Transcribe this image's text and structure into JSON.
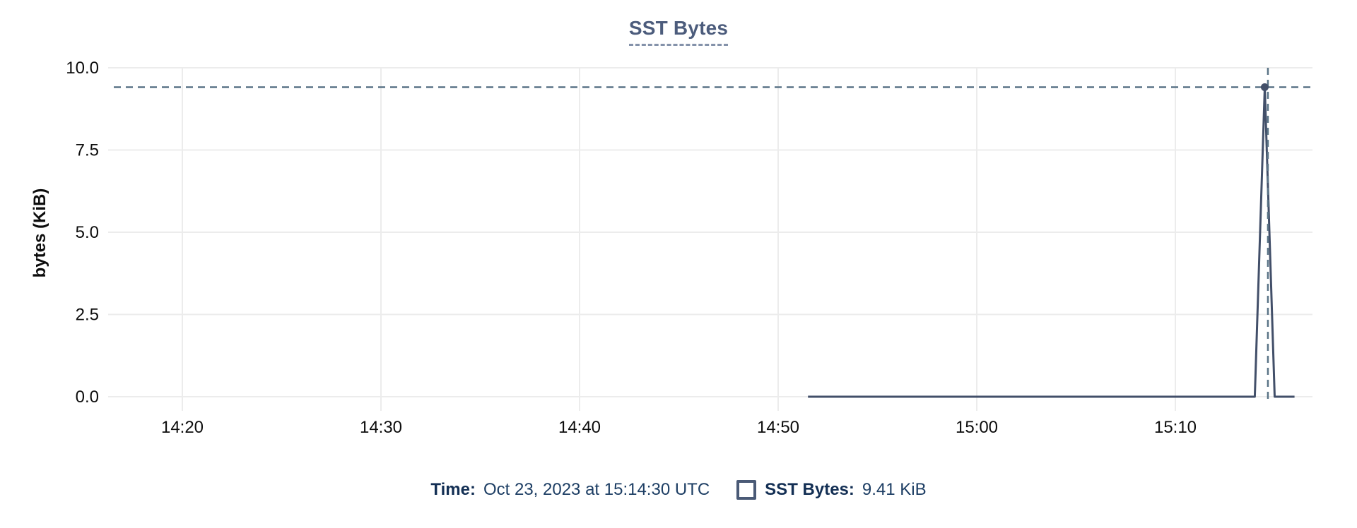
{
  "chart": {
    "title": "SST Bytes",
    "y_axis_title": "bytes (KiB)"
  },
  "chart_data": {
    "type": "line",
    "title": "SST Bytes",
    "xlabel": "",
    "ylabel": "bytes (KiB)",
    "ylim": [
      0,
      10
    ],
    "grid": true,
    "y_ticks": [
      {
        "label": "10.0",
        "v": 10
      },
      {
        "label": "7.5",
        "v": 7.5
      },
      {
        "label": "5.0",
        "v": 5
      },
      {
        "label": "2.5",
        "v": 2.5
      },
      {
        "label": "0.0",
        "v": 0
      }
    ],
    "x_ticks": [
      {
        "label": "14:20",
        "t": 860
      },
      {
        "label": "14:30",
        "t": 870
      },
      {
        "label": "14:40",
        "t": 880
      },
      {
        "label": "14:50",
        "t": 890
      },
      {
        "label": "15:00",
        "t": 900
      },
      {
        "label": "15:10",
        "t": 910
      }
    ],
    "x_unit": "time of day (minutes since midnight)",
    "xlim_minutes": [
      856.3,
      916.9
    ],
    "series": [
      {
        "name": "SST Bytes",
        "units": "KiB",
        "points": [
          [
            891.5,
            0
          ],
          [
            900,
            0
          ],
          [
            910,
            0
          ],
          [
            914,
            0
          ],
          [
            914.5,
            9.41
          ],
          [
            915,
            0
          ],
          [
            916,
            0
          ]
        ]
      }
    ],
    "hover": {
      "time": "Oct 23, 2023 at 15:14:30 UTC",
      "point_t": 914.5,
      "point_v": 9.41,
      "cursor_t": 914.66,
      "value_label": "9.41 KiB"
    }
  },
  "legend": {
    "time_label": "Time:",
    "time_value": "Oct 23, 2023 at 15:14:30 UTC",
    "series_swatch": "square-outline",
    "series_label": "SST Bytes:",
    "series_value": "9.41 KiB"
  },
  "colors": {
    "background": "#ffffff",
    "grid": "#ececec",
    "axis_text": "#0d0d0d",
    "series_line": "#424f69",
    "crosshair": "#5b7487",
    "title_text": "#4c5c7c",
    "title_underline": "#8492aa",
    "legend_label": "#132f54",
    "legend_value": "#1d3e64",
    "legend_swatch_border": "#4a5a76"
  }
}
